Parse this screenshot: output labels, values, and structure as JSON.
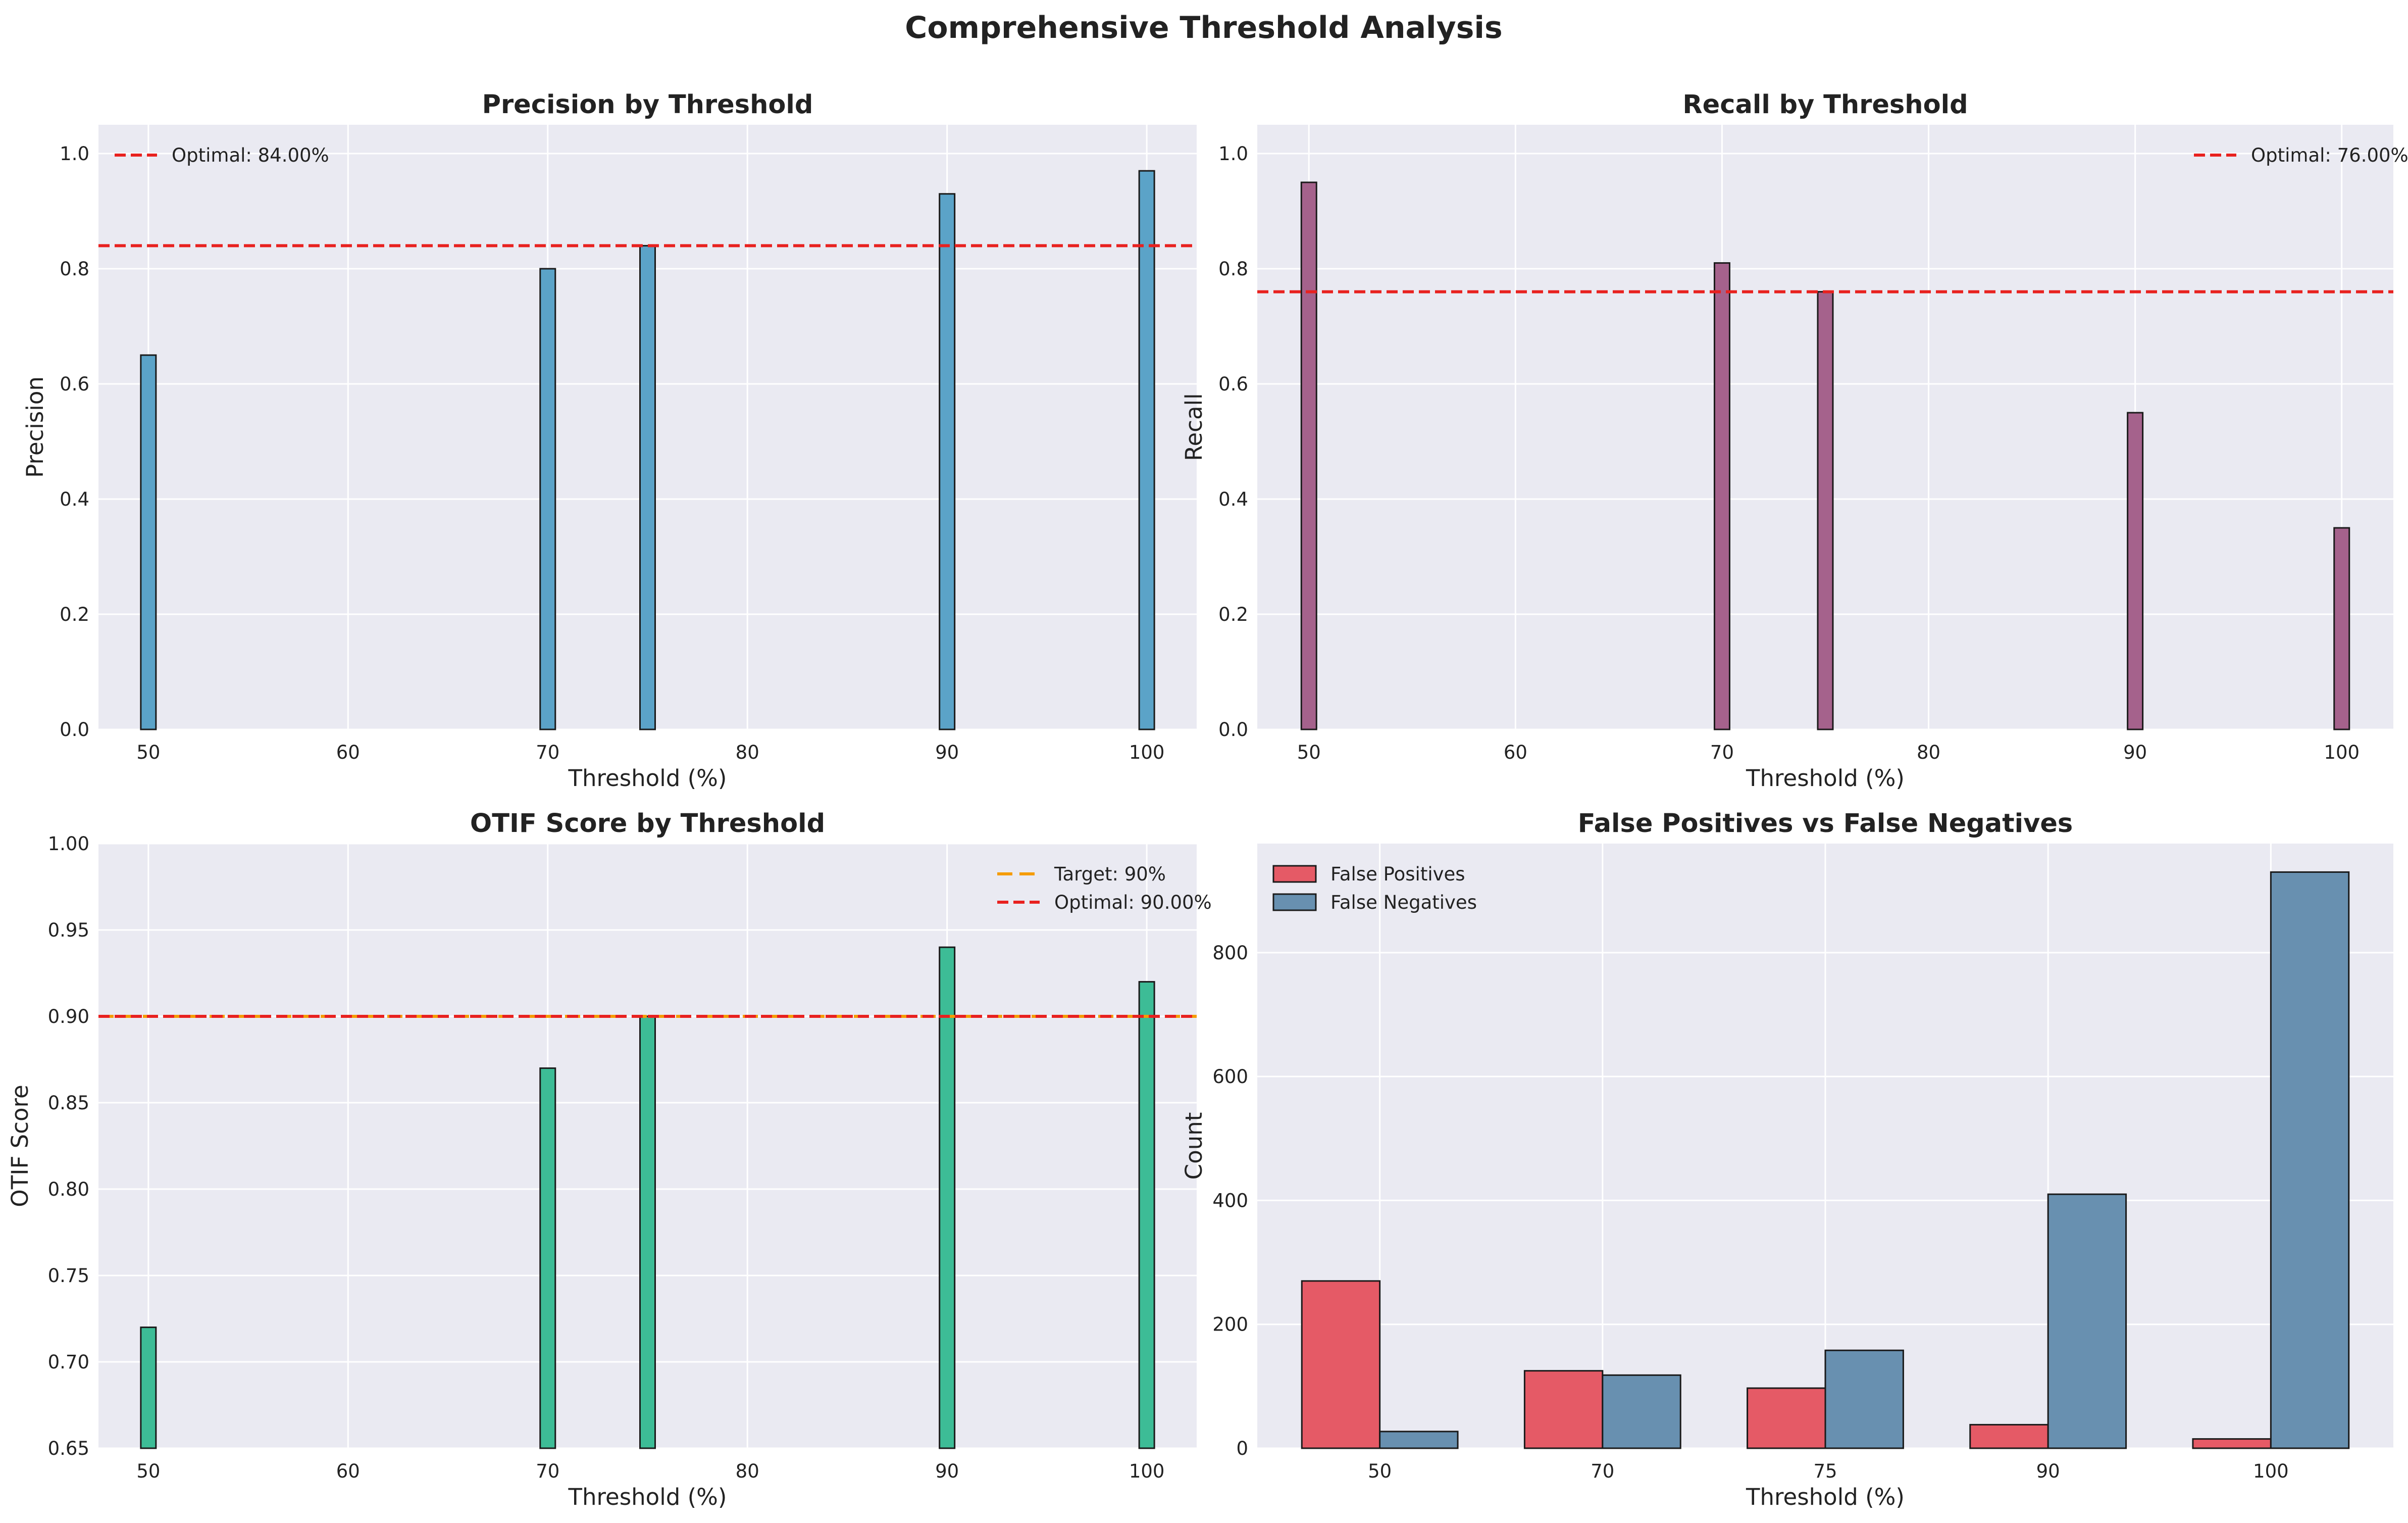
{
  "figure_title": "Comprehensive Threshold Analysis",
  "chart_data": [
    {
      "type": "bar",
      "title": "Precision by Threshold",
      "xlabel": "Threshold (%)",
      "ylabel": "Precision",
      "x": [
        50,
        70,
        75,
        90,
        100
      ],
      "values": [
        0.65,
        0.8,
        0.84,
        0.93,
        0.97
      ],
      "xlim": [
        47.5,
        102.5
      ],
      "ylim": [
        0,
        1.05
      ],
      "xticks": [
        "50",
        "60",
        "70",
        "80",
        "90",
        "100"
      ],
      "yticks": [
        "0.0",
        "0.2",
        "0.4",
        "0.6",
        "0.8",
        "1.0"
      ],
      "bar_color": "#5ba3c8",
      "reference_lines": [
        {
          "label": "Optimal: 84.00%",
          "value": 0.84,
          "color": "#e8211f",
          "style": "dashed"
        }
      ],
      "legend_position": "upper-left",
      "grid": true
    },
    {
      "type": "bar",
      "title": "Recall by Threshold",
      "xlabel": "Threshold (%)",
      "ylabel": "Recall",
      "x": [
        50,
        70,
        75,
        90,
        100
      ],
      "values": [
        0.95,
        0.81,
        0.76,
        0.55,
        0.35
      ],
      "xlim": [
        47.5,
        102.5
      ],
      "ylim": [
        0,
        1.05
      ],
      "xticks": [
        "50",
        "60",
        "70",
        "80",
        "90",
        "100"
      ],
      "yticks": [
        "0.0",
        "0.2",
        "0.4",
        "0.6",
        "0.8",
        "1.0"
      ],
      "bar_color": "#a5628c",
      "reference_lines": [
        {
          "label": "Optimal: 76.00%",
          "value": 0.76,
          "color": "#e8211f",
          "style": "dashed"
        }
      ],
      "legend_position": "upper-right",
      "grid": true
    },
    {
      "type": "bar",
      "title": "OTIF Score by Threshold",
      "xlabel": "Threshold (%)",
      "ylabel": "OTIF Score",
      "x": [
        50,
        70,
        75,
        90,
        100
      ],
      "values": [
        0.72,
        0.87,
        0.9,
        0.94,
        0.92
      ],
      "xlim": [
        47.5,
        102.5
      ],
      "ylim": [
        0.65,
        1.0
      ],
      "xticks": [
        "50",
        "60",
        "70",
        "80",
        "90",
        "100"
      ],
      "yticks": [
        "0.65",
        "0.70",
        "0.75",
        "0.80",
        "0.85",
        "0.90",
        "0.95",
        "1.00"
      ],
      "bar_color": "#3dbc96",
      "reference_lines": [
        {
          "label": "Target: 90%",
          "value": 0.9,
          "color": "#f59c00",
          "style": "dashed-long"
        },
        {
          "label": "Optimal: 90.00%",
          "value": 0.9,
          "color": "#e8211f",
          "style": "dashed"
        }
      ],
      "legend_position": "upper-right",
      "grid": true
    },
    {
      "type": "bar",
      "title": "False Positives vs False Negatives",
      "xlabel": "Threshold (%)",
      "ylabel": "Count",
      "categories": [
        "50",
        "70",
        "75",
        "90",
        "100"
      ],
      "series": [
        {
          "name": "False Positives",
          "values": [
            270,
            125,
            97,
            38,
            15
          ],
          "color": "#e55a66"
        },
        {
          "name": "False Negatives",
          "values": [
            27,
            118,
            158,
            410,
            930
          ],
          "color": "#6890b0"
        }
      ],
      "ylim": [
        0,
        976
      ],
      "yticks": [
        "0",
        "200",
        "400",
        "600",
        "800"
      ],
      "legend_position": "upper-left",
      "grid": true
    }
  ]
}
